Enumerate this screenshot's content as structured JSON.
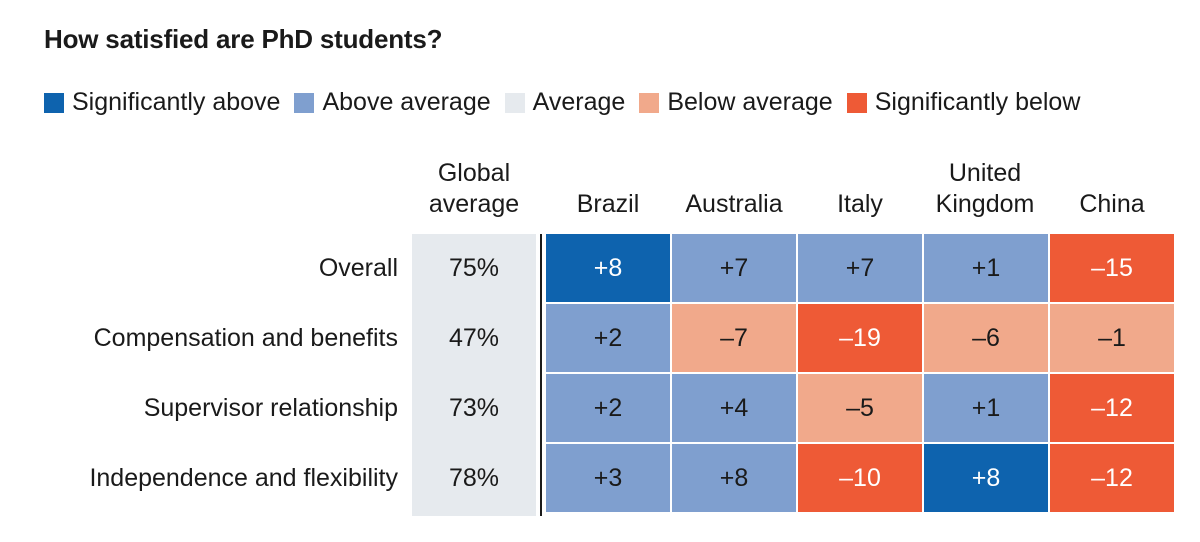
{
  "colors": {
    "significantly_above": "#0e63ae",
    "above_average": "#7f9fcf",
    "average": "#e6eaee",
    "below_average": "#f1a98b",
    "significantly_below": "#ee5a36"
  },
  "chart_data": {
    "type": "heatmap",
    "title": "How satisfied are PhD students?",
    "legend": [
      {
        "key": "significantly_above",
        "label": "Significantly above"
      },
      {
        "key": "above_average",
        "label": "Above average"
      },
      {
        "key": "average",
        "label": "Average"
      },
      {
        "key": "below_average",
        "label": "Below average"
      },
      {
        "key": "significantly_below",
        "label": "Significantly below"
      }
    ],
    "global_header": [
      "Global",
      "average"
    ],
    "columns": [
      {
        "line1": "",
        "line2": "Brazil"
      },
      {
        "line1": "",
        "line2": "Australia"
      },
      {
        "line1": "",
        "line2": "Italy"
      },
      {
        "line1": "United",
        "line2": "Kingdom"
      },
      {
        "line1": "",
        "line2": "China"
      }
    ],
    "rows": [
      {
        "label": "Overall",
        "global": "75%",
        "values": [
          "+8",
          "+7",
          "+7",
          "+1",
          "–15"
        ],
        "categories": [
          "significantly_above",
          "above_average",
          "above_average",
          "above_average",
          "significantly_below"
        ]
      },
      {
        "label": "Compensation and benefits",
        "global": "47%",
        "values": [
          "+2",
          "–7",
          "–19",
          "–6",
          "–1"
        ],
        "categories": [
          "above_average",
          "below_average",
          "significantly_below",
          "below_average",
          "below_average"
        ]
      },
      {
        "label": "Supervisor relationship",
        "global": "73%",
        "values": [
          "+2",
          "+4",
          "–5",
          "+1",
          "–12"
        ],
        "categories": [
          "above_average",
          "above_average",
          "below_average",
          "above_average",
          "significantly_below"
        ]
      },
      {
        "label": "Independence and flexibility",
        "global": "78%",
        "values": [
          "+3",
          "+8",
          "–10",
          "+8",
          "–12"
        ],
        "categories": [
          "above_average",
          "above_average",
          "significantly_below",
          "significantly_above",
          "significantly_below"
        ]
      }
    ]
  }
}
